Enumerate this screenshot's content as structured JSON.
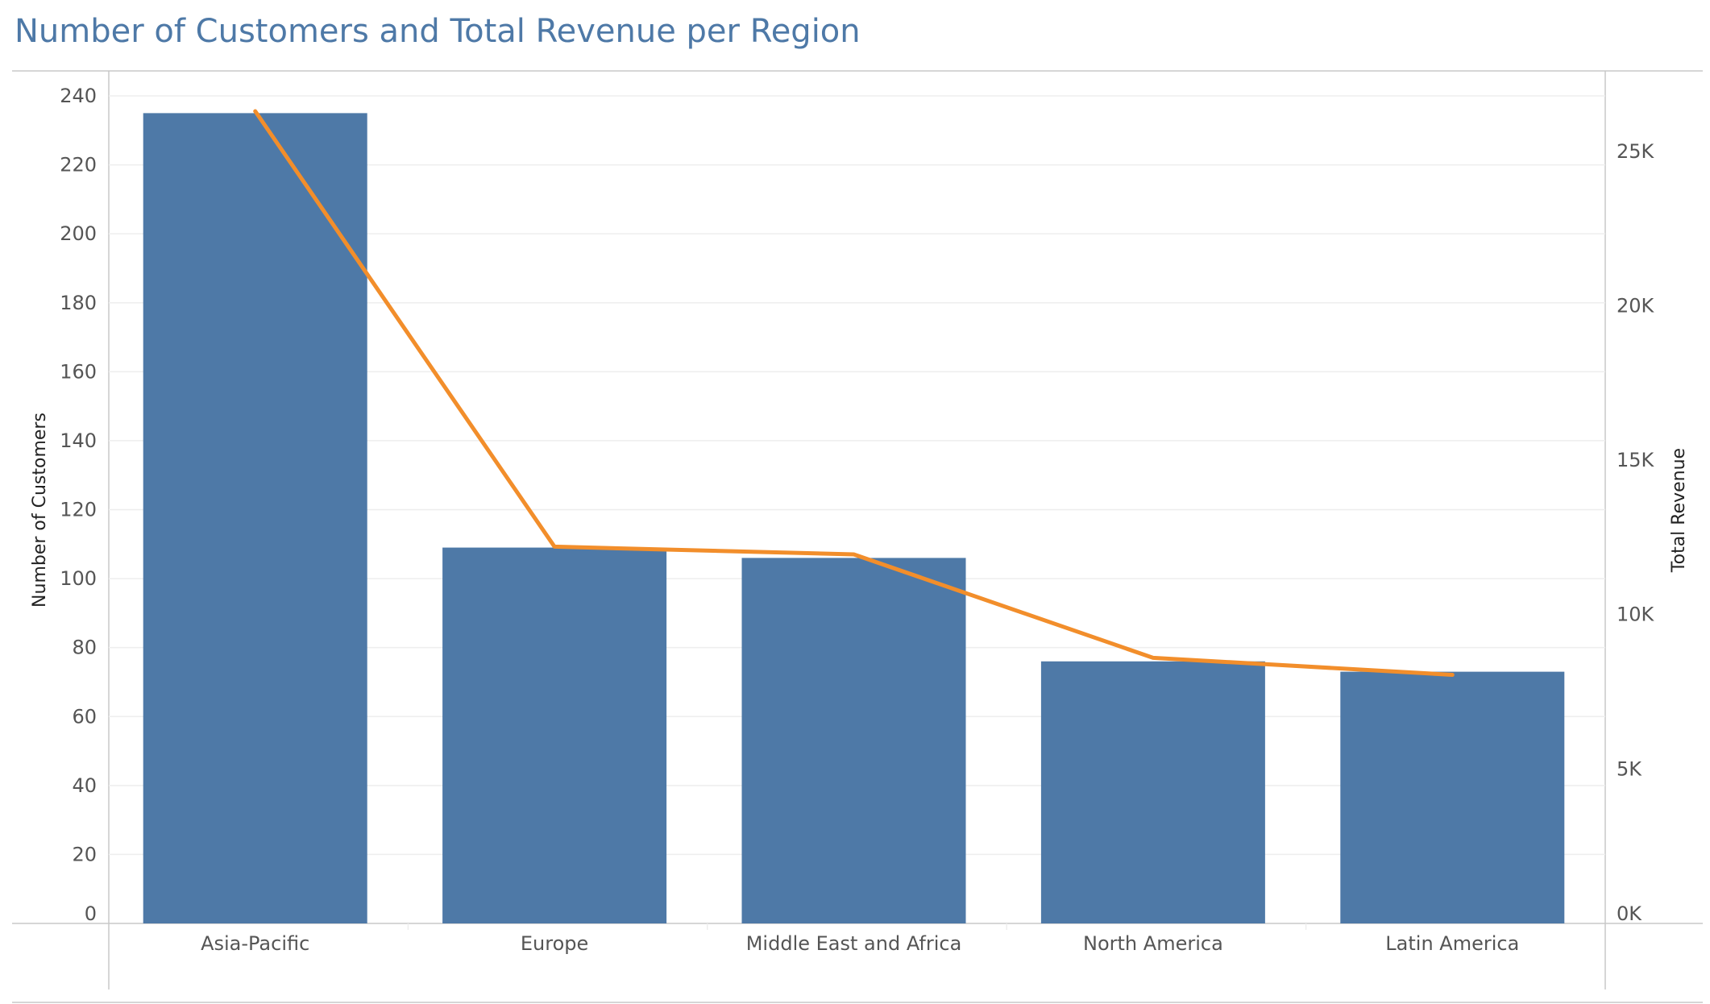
{
  "colors": {
    "title": "#4e79a7",
    "bar": "#4e79a7",
    "line": "#f28e2b",
    "grid": "#eeeeee",
    "axis": "#c8c8c8"
  },
  "chart_data": {
    "type": "bar",
    "title": "Number of Customers and Total Revenue per Region",
    "categories": [
      "Asia-Pacific",
      "Europe",
      "Middle East and Africa",
      "North America",
      "Latin America"
    ],
    "series": [
      {
        "name": "Number of Customers",
        "type": "bar",
        "axis": "left",
        "values": [
          235,
          109,
          106,
          76,
          73
        ]
      },
      {
        "name": "Total Revenue",
        "type": "line",
        "axis": "right",
        "values": [
          26300,
          12200,
          11950,
          8600,
          8050
        ]
      }
    ],
    "ylabel": "Number of Customers",
    "ylim": [
      0,
      240
    ],
    "yticks": [
      "0",
      "20",
      "40",
      "60",
      "80",
      "100",
      "120",
      "140",
      "160",
      "180",
      "200",
      "220",
      "240"
    ],
    "y2label": "Total Revenue",
    "y2lim": [
      0,
      26300
    ],
    "y2ticks": [
      "0K",
      "5K",
      "10K",
      "15K",
      "20K",
      "25K"
    ],
    "grid": true,
    "legend": "none"
  }
}
